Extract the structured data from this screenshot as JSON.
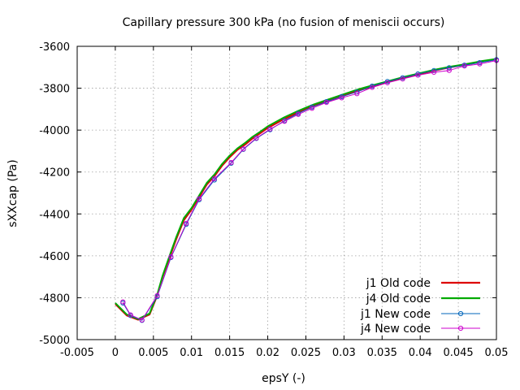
{
  "chart_data": {
    "type": "line",
    "title": "Capillary pressure 300 kPa (no fusion of meniscii occurs)",
    "xlabel": "epsY (-)",
    "ylabel": "sXXcap (Pa)",
    "xlim": [
      -0.005,
      0.05
    ],
    "ylim": [
      -5000,
      -3600
    ],
    "xticks": [
      -0.005,
      0,
      0.005,
      0.01,
      0.015,
      0.02,
      0.025,
      0.03,
      0.035,
      0.04,
      0.045,
      0.05
    ],
    "xtick_labels": [
      "-0.005",
      "0",
      "0.005",
      "0.01",
      "0.015",
      "0.02",
      "0.025",
      "0.03",
      "0.035",
      "0.04",
      "0.045",
      "0.05"
    ],
    "yticks": [
      -5000,
      -4800,
      -4600,
      -4400,
      -4200,
      -4000,
      -3800,
      -3600
    ],
    "ytick_labels": [
      "-5000",
      "-4800",
      "-4600",
      "-4400",
      "-4200",
      "-4000",
      "-3800",
      "-3600"
    ],
    "grid": true,
    "legend_position": "bottom-right",
    "series": [
      {
        "name": "j1 Old code",
        "color": "#dd0000",
        "marker": "none",
        "x": [
          0,
          0.0015,
          0.003,
          0.0045,
          0.0055,
          0.0062,
          0.007,
          0.008,
          0.009,
          0.01,
          0.011,
          0.012,
          0.013,
          0.014,
          0.015,
          0.016,
          0.017,
          0.018,
          0.019,
          0.02,
          0.022,
          0.024,
          0.026,
          0.028,
          0.03,
          0.032,
          0.034,
          0.036,
          0.038,
          0.04,
          0.042,
          0.044,
          0.046,
          0.048,
          0.05
        ],
        "y": [
          -4830,
          -4885,
          -4905,
          -4880,
          -4790,
          -4700,
          -4620,
          -4520,
          -4430,
          -4380,
          -4320,
          -4260,
          -4220,
          -4170,
          -4130,
          -4095,
          -4070,
          -4040,
          -4015,
          -3990,
          -3950,
          -3915,
          -3885,
          -3860,
          -3835,
          -3810,
          -3790,
          -3768,
          -3750,
          -3732,
          -3715,
          -3700,
          -3688,
          -3674,
          -3662
        ]
      },
      {
        "name": "j4 Old code",
        "color": "#00aa00",
        "marker": "none",
        "x": [
          0,
          0.0015,
          0.003,
          0.0045,
          0.0055,
          0.0062,
          0.007,
          0.008,
          0.009,
          0.01,
          0.011,
          0.012,
          0.013,
          0.014,
          0.015,
          0.016,
          0.017,
          0.018,
          0.019,
          0.02,
          0.022,
          0.024,
          0.026,
          0.028,
          0.03,
          0.032,
          0.034,
          0.036,
          0.038,
          0.04,
          0.042,
          0.044,
          0.046,
          0.048,
          0.05
        ],
        "y": [
          -4825,
          -4880,
          -4902,
          -4875,
          -4785,
          -4695,
          -4612,
          -4510,
          -4420,
          -4372,
          -4312,
          -4252,
          -4212,
          -4162,
          -4122,
          -4088,
          -4062,
          -4032,
          -4008,
          -3982,
          -3942,
          -3908,
          -3878,
          -3853,
          -3828,
          -3804,
          -3784,
          -3764,
          -3745,
          -3728,
          -3711,
          -3697,
          -3685,
          -3671,
          -3660
        ]
      },
      {
        "name": "j1 New code",
        "color": "#0066bb",
        "marker": "circle",
        "x": [
          0.001,
          0.002,
          0.0035,
          0.0055,
          0.0073,
          0.0093,
          0.011,
          0.013,
          0.0152,
          0.0168,
          0.0185,
          0.0203,
          0.0222,
          0.024,
          0.0258,
          0.0277,
          0.0297,
          0.0317,
          0.0337,
          0.0357,
          0.0377,
          0.0397,
          0.0418,
          0.0438,
          0.0458,
          0.0478,
          0.05
        ],
        "y": [
          -4825,
          -4885,
          -4908,
          -4795,
          -4608,
          -4450,
          -4332,
          -4238,
          -4158,
          -4092,
          -4040,
          -3998,
          -3955,
          -3920,
          -3890,
          -3864,
          -3840,
          -3818,
          -3790,
          -3768,
          -3750,
          -3732,
          -3716,
          -3702,
          -3690,
          -3678,
          -3664
        ]
      },
      {
        "name": "j4 New code",
        "color": "#cc00cc",
        "marker": "circle",
        "x": [
          0.001,
          0.002,
          0.0035,
          0.0055,
          0.0073,
          0.0093,
          0.011,
          0.013,
          0.0152,
          0.0168,
          0.0185,
          0.0203,
          0.0222,
          0.024,
          0.0258,
          0.0277,
          0.0297,
          0.0317,
          0.0337,
          0.0357,
          0.0377,
          0.0397,
          0.0418,
          0.0438,
          0.0458,
          0.0478,
          0.05
        ],
        "y": [
          -4820,
          -4882,
          -4906,
          -4790,
          -4605,
          -4445,
          -4328,
          -4232,
          -4155,
          -4090,
          -4038,
          -3995,
          -3958,
          -3925,
          -3896,
          -3868,
          -3846,
          -3826,
          -3796,
          -3774,
          -3756,
          -3738,
          -3724,
          -3715,
          -3694,
          -3684,
          -3668
        ]
      }
    ]
  }
}
